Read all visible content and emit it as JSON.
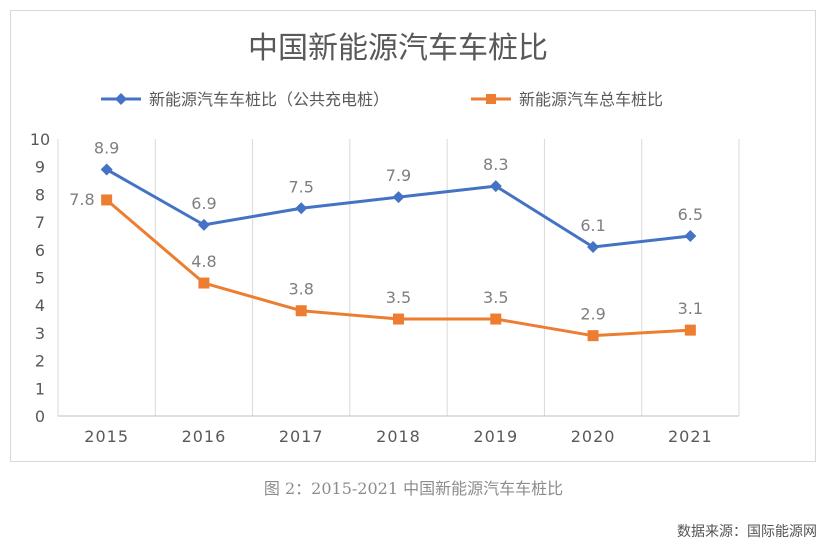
{
  "chart_data": {
    "type": "line",
    "title": "中国新能源汽车车桩比",
    "categories": [
      "2015",
      "2016",
      "2017",
      "2018",
      "2019",
      "2020",
      "2021"
    ],
    "ylim": [
      0,
      10
    ],
    "yticks": [
      "0",
      "1",
      "2",
      "3",
      "4",
      "5",
      "6",
      "7",
      "8",
      "9",
      "10"
    ],
    "grid": "vertical",
    "legend_position": "top",
    "series": [
      {
        "name": "新能源汽车车桩比（公共充电桩）",
        "color": "#4472C4",
        "marker": "diamond",
        "values": [
          8.9,
          6.9,
          7.5,
          7.9,
          8.3,
          6.1,
          6.5
        ],
        "labels": [
          "8.9",
          "6.9",
          "7.5",
          "7.9",
          "8.3",
          "6.1",
          "6.5"
        ]
      },
      {
        "name": "新能源汽车总车桩比",
        "color": "#ED7D31",
        "marker": "square",
        "values": [
          7.8,
          4.8,
          3.8,
          3.5,
          3.5,
          2.9,
          3.1
        ],
        "labels": [
          "7.8",
          "4.8",
          "3.8",
          "3.5",
          "3.5",
          "2.9",
          "3.1"
        ]
      }
    ]
  },
  "caption": "图 2：2015-2021 中国新能源汽车车桩比",
  "source": "数据来源：国际能源网"
}
